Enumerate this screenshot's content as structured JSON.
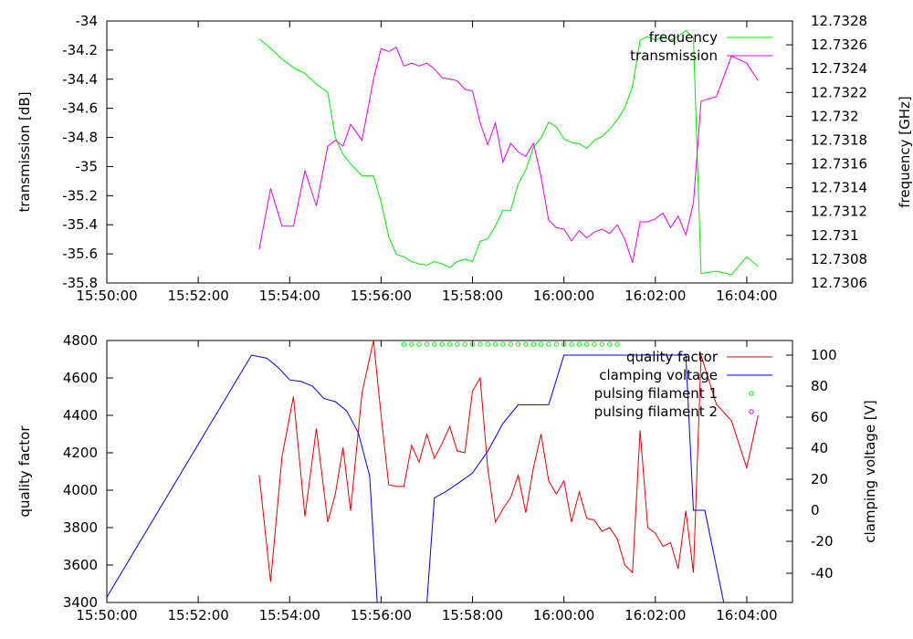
{
  "chart_data": [
    {
      "type": "line",
      "x_axis": {
        "ticks": [
          "15:50:00",
          "15:52:00",
          "15:54:00",
          "15:56:00",
          "15:58:00",
          "16:00:00",
          "16:02:00",
          "16:04:00"
        ],
        "xlim": [
          "15:50:00",
          "16:05:00"
        ]
      },
      "y_left": {
        "label": "transmission [dB]",
        "ylim": [
          -35.8,
          -34.0
        ],
        "ticks": [
          "-34",
          "-34.2",
          "-34.4",
          "-34.6",
          "-34.8",
          "-35",
          "-35.2",
          "-35.4",
          "-35.6",
          "-35.8"
        ]
      },
      "y_right": {
        "label": "frequency [GHz]",
        "ylim": [
          12.7306,
          12.7328
        ],
        "ticks": [
          "12.7328",
          "12.7326",
          "12.7324",
          "12.7322",
          "12.732",
          "12.7318",
          "12.7316",
          "12.7314",
          "12.7312",
          "12.731",
          "12.7308",
          "12.7306"
        ]
      },
      "legend_position": "top-right",
      "series": [
        {
          "name": "frequency",
          "axis": "right",
          "color": "#00ee00",
          "x": [
            "15:53:20",
            "15:53:35",
            "15:53:50",
            "15:54:05",
            "15:54:20",
            "15:54:35",
            "15:54:50",
            "15:55:00",
            "15:55:10",
            "15:55:20",
            "15:55:35",
            "15:55:50",
            "15:56:00",
            "15:56:10",
            "15:56:20",
            "15:56:30",
            "15:56:40",
            "15:56:50",
            "15:57:00",
            "15:57:10",
            "15:57:20",
            "15:57:30",
            "15:57:40",
            "15:57:50",
            "15:58:00",
            "15:58:10",
            "15:58:20",
            "15:58:30",
            "15:58:40",
            "15:58:50",
            "15:59:00",
            "15:59:10",
            "15:59:20",
            "15:59:30",
            "15:59:40",
            "15:59:50",
            "16:00:00",
            "16:00:10",
            "16:00:20",
            "16:00:30",
            "16:00:40",
            "16:00:50",
            "16:01:00",
            "16:01:10",
            "16:01:20",
            "16:01:30",
            "16:01:40",
            "16:01:50",
            "16:02:00",
            "16:02:10",
            "16:02:20",
            "16:02:30",
            "16:02:40",
            "16:02:50",
            "16:03:00",
            "16:03:20",
            "16:03:40",
            "16:04:00",
            "16:04:15"
          ],
          "values": [
            12.73265,
            12.73257,
            12.73248,
            12.73241,
            12.73236,
            12.73227,
            12.7322,
            12.73182,
            12.73168,
            12.7316,
            12.7315,
            12.7315,
            12.73128,
            12.73099,
            12.73084,
            12.73082,
            12.73078,
            12.73076,
            12.73075,
            12.73078,
            12.73076,
            12.73073,
            12.73078,
            12.7308,
            12.73078,
            12.73095,
            12.73097,
            12.73108,
            12.73121,
            12.73121,
            12.73143,
            12.73155,
            12.73174,
            12.73182,
            12.73195,
            12.73191,
            12.73181,
            12.73178,
            12.73177,
            12.73173,
            12.7318,
            12.73183,
            12.73189,
            12.73197,
            12.73207,
            12.73225,
            12.73264,
            12.73267,
            12.73264,
            12.73267,
            12.73264,
            12.73267,
            12.73272,
            12.73266,
            12.73068,
            12.7307,
            12.73067,
            12.73082,
            12.73074
          ]
        },
        {
          "name": "transmission",
          "axis": "left",
          "color": "#ee00ee",
          "x": [
            "15:53:20",
            "15:53:35",
            "15:53:50",
            "15:54:05",
            "15:54:20",
            "15:54:35",
            "15:54:50",
            "15:55:00",
            "15:55:10",
            "15:55:20",
            "15:55:35",
            "15:55:50",
            "15:56:00",
            "15:56:10",
            "15:56:20",
            "15:56:30",
            "15:56:40",
            "15:56:50",
            "15:57:00",
            "15:57:10",
            "15:57:20",
            "15:57:30",
            "15:57:40",
            "15:57:50",
            "15:58:00",
            "15:58:10",
            "15:58:20",
            "15:58:30",
            "15:58:40",
            "15:58:50",
            "15:59:00",
            "15:59:10",
            "15:59:20",
            "15:59:30",
            "15:59:40",
            "15:59:50",
            "16:00:00",
            "16:00:10",
            "16:00:20",
            "16:00:30",
            "16:00:40",
            "16:00:50",
            "16:01:00",
            "16:01:10",
            "16:01:20",
            "16:01:30",
            "16:01:40",
            "16:01:50",
            "16:02:00",
            "16:02:10",
            "16:02:20",
            "16:02:30",
            "16:02:40",
            "16:02:50",
            "16:03:00",
            "16:03:20",
            "16:03:40",
            "16:04:00",
            "16:04:15"
          ],
          "values": [
            -35.57,
            -35.15,
            -35.41,
            -35.41,
            -35.03,
            -35.27,
            -34.86,
            -34.82,
            -34.86,
            -34.71,
            -34.82,
            -34.4,
            -34.19,
            -34.21,
            -34.18,
            -34.31,
            -34.29,
            -34.31,
            -34.29,
            -34.33,
            -34.39,
            -34.4,
            -34.41,
            -34.47,
            -34.48,
            -34.7,
            -34.85,
            -34.7,
            -34.97,
            -34.84,
            -34.9,
            -34.93,
            -34.84,
            -35.07,
            -35.37,
            -35.42,
            -35.43,
            -35.51,
            -35.44,
            -35.49,
            -35.45,
            -35.43,
            -35.46,
            -35.4,
            -35.5,
            -35.66,
            -35.38,
            -35.38,
            -35.36,
            -35.32,
            -35.42,
            -35.34,
            -35.47,
            -35.25,
            -34.55,
            -34.52,
            -34.24,
            -34.29,
            -34.41
          ]
        }
      ]
    },
    {
      "type": "line",
      "x_axis": {
        "ticks": [
          "15:50:00",
          "15:52:00",
          "15:54:00",
          "15:56:00",
          "15:58:00",
          "16:00:00",
          "16:02:00",
          "16:04:00"
        ],
        "xlim": [
          "15:50:00",
          "16:05:00"
        ]
      },
      "y_left": {
        "label": "quality factor",
        "ylim": [
          3400,
          4800
        ],
        "ticks": [
          "4800",
          "4600",
          "4400",
          "4200",
          "4000",
          "3800",
          "3600",
          "3400"
        ]
      },
      "y_right": {
        "label": "clamping voltage [V]",
        "ylim": [
          -60,
          110
        ],
        "ticks": [
          "100",
          "80",
          "60",
          "40",
          "20",
          "0",
          "-20",
          "-40"
        ]
      },
      "legend_position": "top-right",
      "series": [
        {
          "name": "quality factor",
          "axis": "left",
          "color": "#ee0000",
          "x": [
            "15:53:20",
            "15:53:35",
            "15:53:50",
            "15:54:05",
            "15:54:20",
            "15:54:35",
            "15:54:50",
            "15:55:00",
            "15:55:10",
            "15:55:20",
            "15:55:35",
            "15:55:50",
            "15:56:00",
            "15:56:10",
            "15:56:20",
            "15:56:30",
            "15:56:40",
            "15:56:50",
            "15:57:00",
            "15:57:10",
            "15:57:20",
            "15:57:30",
            "15:57:40",
            "15:57:50",
            "15:58:00",
            "15:58:10",
            "15:58:20",
            "15:58:30",
            "15:58:40",
            "15:58:50",
            "15:59:00",
            "15:59:10",
            "15:59:20",
            "15:59:30",
            "15:59:40",
            "15:59:50",
            "16:00:00",
            "16:00:10",
            "16:00:20",
            "16:00:30",
            "16:00:40",
            "16:00:50",
            "16:01:00",
            "16:01:10",
            "16:01:20",
            "16:01:30",
            "16:01:40",
            "16:01:50",
            "16:02:00",
            "16:02:10",
            "16:02:20",
            "16:02:30",
            "16:02:40",
            "16:02:50",
            "16:03:00",
            "16:03:20",
            "16:03:40",
            "16:04:00",
            "16:04:15"
          ],
          "values": [
            4080,
            3510,
            4180,
            4500,
            3860,
            4330,
            3830,
            3980,
            4230,
            3890,
            4520,
            4800,
            4400,
            4030,
            4020,
            4020,
            4240,
            4150,
            4300,
            4170,
            4250,
            4340,
            4210,
            4200,
            4530,
            4600,
            4120,
            3830,
            3900,
            3960,
            4080,
            3880,
            4120,
            4300,
            4050,
            3980,
            4050,
            3830,
            3990,
            3850,
            3840,
            3780,
            3800,
            3740,
            3600,
            3560,
            4320,
            3800,
            3770,
            3700,
            3720,
            3580,
            3890,
            3560,
            4720,
            4460,
            4370,
            4120,
            4400
          ]
        },
        {
          "name": "clamping voltage",
          "axis": "right",
          "color": "#0000ee",
          "x": [
            "15:50:00",
            "15:53:10",
            "15:53:30",
            "15:53:45",
            "15:54:00",
            "15:54:15",
            "15:54:30",
            "15:54:45",
            "15:55:00",
            "15:55:15",
            "15:55:30",
            "15:55:45",
            "15:55:55",
            "15:56:00",
            "15:57:00",
            "15:57:10",
            "15:57:25",
            "15:57:40",
            "15:58:00",
            "15:58:20",
            "15:58:40",
            "15:59:00",
            "15:59:20",
            "15:59:40",
            "16:00:00",
            "16:00:20",
            "16:00:40",
            "16:01:00",
            "16:01:20",
            "16:01:40",
            "16:02:00",
            "16:02:20",
            "16:02:40",
            "16:02:50",
            "16:03:05",
            "16:03:30",
            "16:04:00"
          ],
          "values": [
            -56,
            100,
            98,
            92,
            84,
            83,
            80,
            72,
            70,
            64,
            50,
            22,
            -60,
            -60,
            -60,
            8,
            12,
            17,
            24,
            38,
            56,
            68,
            68,
            68,
            100,
            100,
            100,
            100,
            100,
            100,
            100,
            100,
            100,
            0,
            0,
            -60,
            -60
          ]
        },
        {
          "name": "pulsing filament 1",
          "axis": "right",
          "color": "#00ee00",
          "marker": "circle",
          "x": [
            "15:56:30",
            "15:56:40",
            "15:56:50",
            "15:57:00",
            "15:57:10",
            "15:57:20",
            "15:57:30",
            "15:57:40",
            "15:57:50",
            "15:58:00",
            "15:58:10",
            "15:58:20",
            "15:58:30",
            "15:58:40",
            "15:58:50",
            "15:59:00",
            "15:59:10",
            "15:59:20",
            "15:59:30",
            "15:59:40",
            "15:59:50",
            "16:00:00",
            "16:00:10",
            "16:00:20",
            "16:00:30",
            "16:00:40",
            "16:00:50",
            "16:01:00",
            "16:01:10"
          ],
          "values": [
            107,
            107,
            107,
            107,
            107,
            107,
            107,
            107,
            107,
            107,
            107,
            107,
            107,
            107,
            107,
            107,
            107,
            107,
            107,
            107,
            107,
            107,
            107,
            107,
            107,
            107,
            107,
            107,
            107
          ]
        },
        {
          "name": "pulsing filament 2",
          "axis": "right",
          "color": "#ee00ee",
          "marker": "circle",
          "x": [],
          "values": []
        }
      ]
    }
  ]
}
